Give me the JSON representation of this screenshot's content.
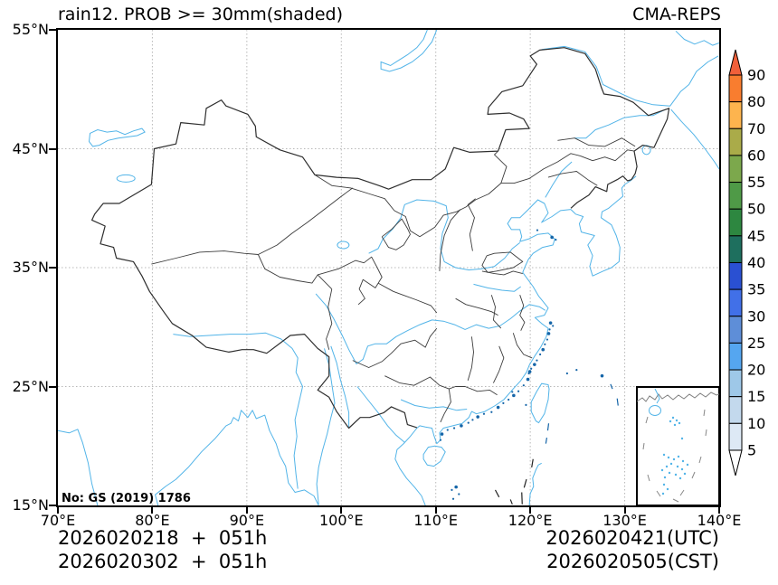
{
  "header": {
    "title": "rain12. PROB >= 30mm(shaded)",
    "source": "CMA-REPS"
  },
  "map_note": "No: GS (2019) 1786",
  "axes": {
    "x_tick_labels": [
      "70°E",
      "80°E",
      "90°E",
      "100°E",
      "110°E",
      "120°E",
      "130°E",
      "140°E"
    ],
    "y_tick_labels": [
      "55°N",
      "45°N",
      "35°N",
      "25°N",
      "15°N"
    ]
  },
  "colorbar": {
    "tick_labels": [
      "90",
      "80",
      "70",
      "60",
      "55",
      "50",
      "45",
      "40",
      "35",
      "30",
      "25",
      "20",
      "15",
      "10",
      "5"
    ],
    "segment_colors_top_to_bottom": [
      "#f97d2f",
      "#fdb44e",
      "#aaab49",
      "#7ca84c",
      "#4f9a47",
      "#2d8740",
      "#1e6f5e",
      "#2a50d2",
      "#4170e8",
      "#5e8ed8",
      "#55a6f0",
      "#9ec8e8",
      "#c3d9ed",
      "#dde9f5"
    ],
    "over_arrow_color": "#f1603a",
    "under_arrow_color": "#ffffff"
  },
  "footer": {
    "init_line_utc": "2026020218  +  051h",
    "init_line_cst": "2026020302  +  051h",
    "valid_utc": "2026020421(UTC)",
    "valid_cst": "2026020505(CST)"
  },
  "map_colors": {
    "coastline": "#52b4e8",
    "national_border": "#2e2e2e",
    "province_border": "#3c3c3c",
    "gridline": "#b8b8b8",
    "island_specks": "#1565a8",
    "dash_line": "#222222",
    "inset_coast": "#808080",
    "inset_dash": "#888888"
  }
}
